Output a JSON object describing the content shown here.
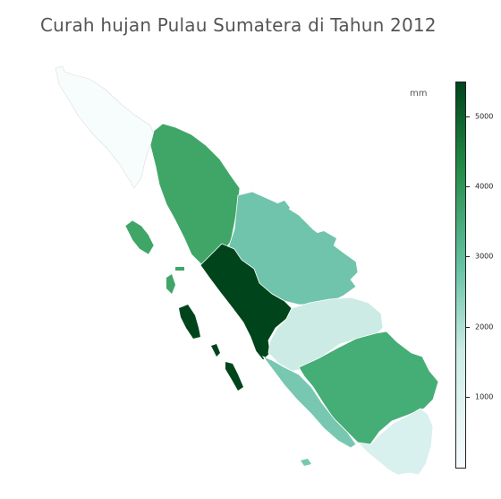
{
  "title": "Curah hujan Pulau Sumatera di Tahun 2012",
  "colorbar": {
    "unit": "mm",
    "min": 0,
    "max": 5500,
    "ticks": [
      "1000",
      "2000",
      "3000",
      "4000",
      "5000"
    ],
    "colors": [
      "#f7fcfd",
      "#ccece6",
      "#66c2a4",
      "#238b45",
      "#00441b"
    ]
  },
  "chart_data": {
    "type": "choropleth",
    "value_unit": "mm",
    "regions": [
      {
        "id": "aceh",
        "value": 150,
        "color": "#f7fcfd"
      },
      {
        "id": "sumatera-utara",
        "value": 3700,
        "color": "#3fa668"
      },
      {
        "id": "nias",
        "value": 3700,
        "color": "#3fa668"
      },
      {
        "id": "riau",
        "value": 2800,
        "color": "#6fc4ab"
      },
      {
        "id": "sumatera-barat",
        "value": 5500,
        "color": "#00441b"
      },
      {
        "id": "mentawai",
        "value": 5500,
        "color": "#00441b"
      },
      {
        "id": "jambi",
        "value": 1900,
        "color": "#ccebe4"
      },
      {
        "id": "sumatera-selatan",
        "value": 3600,
        "color": "#45ad76"
      },
      {
        "id": "bengkulu",
        "value": 2500,
        "color": "#78c7b0"
      },
      {
        "id": "lampung",
        "value": 1400,
        "color": "#d8f0ee"
      }
    ]
  }
}
